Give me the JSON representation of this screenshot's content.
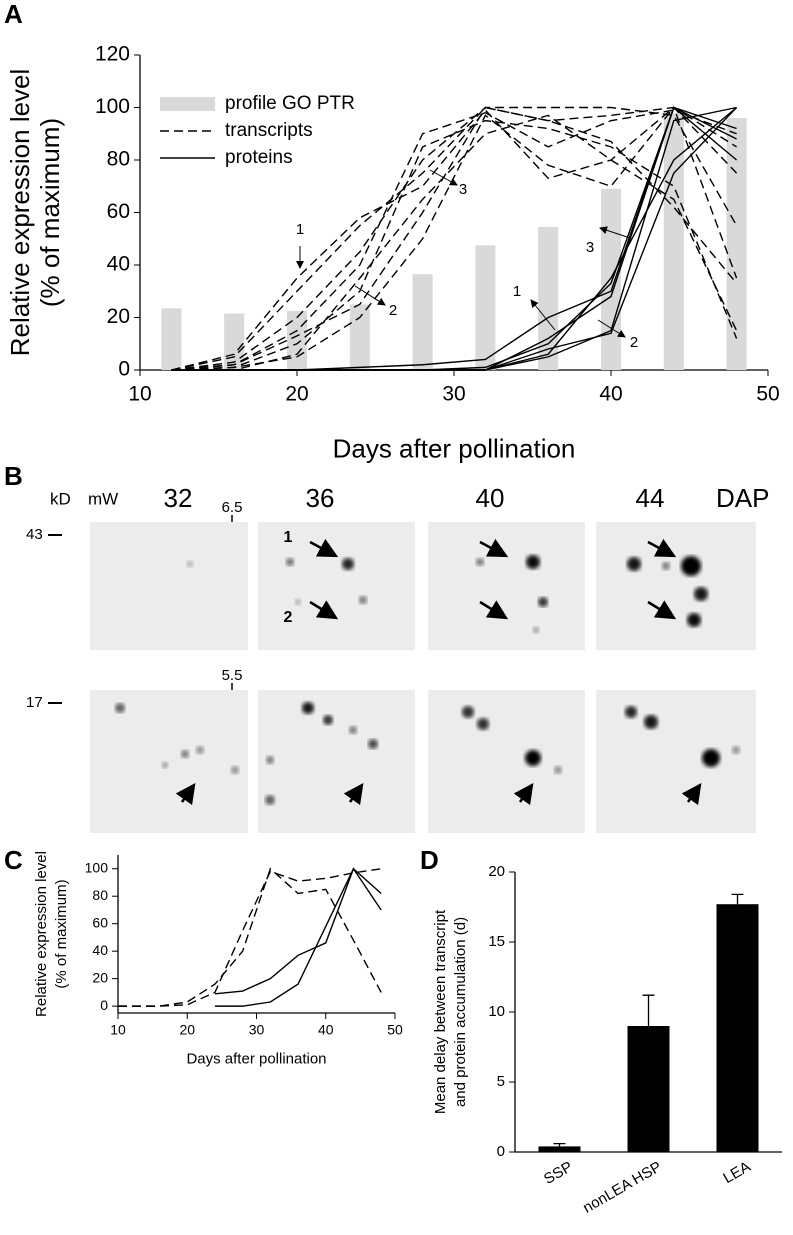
{
  "chart_data": [
    {
      "type": "line",
      "panel_label": "A",
      "xlabel": "Days after pollination",
      "ylabel": [
        "Relative expression level",
        "(% of maximum)"
      ],
      "x": [
        12,
        16,
        20,
        24,
        28,
        32,
        36,
        40,
        44,
        48
      ],
      "xlim": [
        10,
        50
      ],
      "xticks": [
        10,
        20,
        30,
        40,
        50
      ],
      "ylim": [
        0,
        120
      ],
      "yticks": [
        0,
        20,
        40,
        60,
        80,
        100,
        120
      ],
      "series": [
        {
          "name": "profile GO PTR",
          "style": "bar",
          "color": "#d9d9d9",
          "values": [
            23.5,
            21.5,
            22.5,
            25,
            36.5,
            47.5,
            54.5,
            69,
            98,
            96
          ]
        },
        {
          "name": "transcripts",
          "style": "dashed",
          "color": "#000000",
          "values": [
            [
              0,
              5,
              30,
              55,
              75,
              100,
              95,
              97,
              100,
              35
            ],
            [
              0,
              3,
              20,
              45,
              80,
              100,
              100,
              100,
              97,
              55
            ],
            [
              0,
              2,
              15,
              40,
              90,
              98,
              85,
              95,
              99,
              90
            ],
            [
              0,
              6,
              35,
              58,
              70,
              99,
              73,
              80,
              100,
              75
            ],
            [
              0,
              1,
              10,
              30,
              85,
              95,
              92,
              85,
              70,
              12
            ],
            [
              0,
              0,
              6,
              35,
              65,
              90,
              97,
              80,
              65,
              15
            ],
            [
              0,
              2,
              13,
              25,
              60,
              100,
              95,
              87,
              62,
              33
            ],
            [
              0,
              1,
              5,
              20,
              50,
              97,
              78,
              70,
              100,
              85
            ]
          ]
        },
        {
          "name": "proteins",
          "style": "solid",
          "color": "#000000",
          "values": [
            [
              0,
              0,
              0,
              1,
              2,
              4,
              20,
              30,
              100,
              88
            ],
            [
              0,
              0,
              0,
              0,
              0,
              1,
              10,
              33,
              100,
              92
            ],
            [
              0,
              0,
              0,
              0,
              0,
              0,
              5,
              15,
              95,
              100
            ],
            [
              0,
              0,
              0,
              0,
              0,
              0,
              8,
              14,
              75,
              100
            ],
            [
              0,
              0,
              0,
              0,
              0,
              0,
              12,
              28,
              100,
              80
            ],
            [
              0,
              0,
              0,
              0,
              0,
              0,
              6,
              35,
              80,
              100
            ]
          ]
        }
      ],
      "annotations": [
        "1",
        "2",
        "3",
        "1",
        "2",
        "3"
      ]
    },
    {
      "type": "line",
      "panel_label": "C",
      "xlabel": "Days after pollination",
      "ylabel": [
        "Relative expression level",
        "(% of maximum)"
      ],
      "x": [
        10,
        16,
        20,
        24,
        28,
        32,
        36,
        40,
        44,
        48
      ],
      "xlim": [
        10,
        50
      ],
      "xticks": [
        10,
        20,
        30,
        40,
        50
      ],
      "ylim": [
        -5,
        110
      ],
      "yticks": [
        0,
        20,
        40,
        60,
        80,
        100
      ],
      "series": [
        {
          "style": "dashed",
          "color": "#000000",
          "values": [
            [
              0,
              0,
              3,
              16,
              40,
              100,
              82,
              85,
              48,
              10
            ],
            [
              0,
              0,
              1,
              10,
              55,
              98,
              91,
              93,
              97,
              100
            ]
          ]
        },
        {
          "style": "solid",
          "color": "#000000",
          "values": [
            [
              null,
              null,
              null,
              9,
              11,
              20,
              37,
              46,
              100,
              70
            ],
            [
              null,
              null,
              null,
              0,
              0,
              3,
              16,
              58,
              100,
              82
            ]
          ]
        }
      ]
    },
    {
      "type": "bar",
      "panel_label": "D",
      "ylabel": [
        "Mean delay between transcript",
        "and protein accumulation (d)"
      ],
      "categories": [
        "SSP",
        "nonLEA HSP",
        "LEA"
      ],
      "values": [
        0.4,
        9.0,
        17.7
      ],
      "errors": [
        0.2,
        2.2,
        0.7
      ],
      "color": "#000000",
      "ylim": [
        0,
        20
      ],
      "yticks": [
        0,
        5,
        10,
        15,
        20
      ]
    }
  ],
  "gel_panel": {
    "panel_label": "B",
    "mass_unit": "kD",
    "mw_label": "mW",
    "days": [
      "32",
      "36",
      "40",
      "44"
    ],
    "day_unit": "DAP",
    "mass_markers": [
      "43",
      "17"
    ],
    "pi_markers": [
      "6.5",
      "5.5"
    ],
    "arrow_labels": [
      "1",
      "2"
    ]
  }
}
